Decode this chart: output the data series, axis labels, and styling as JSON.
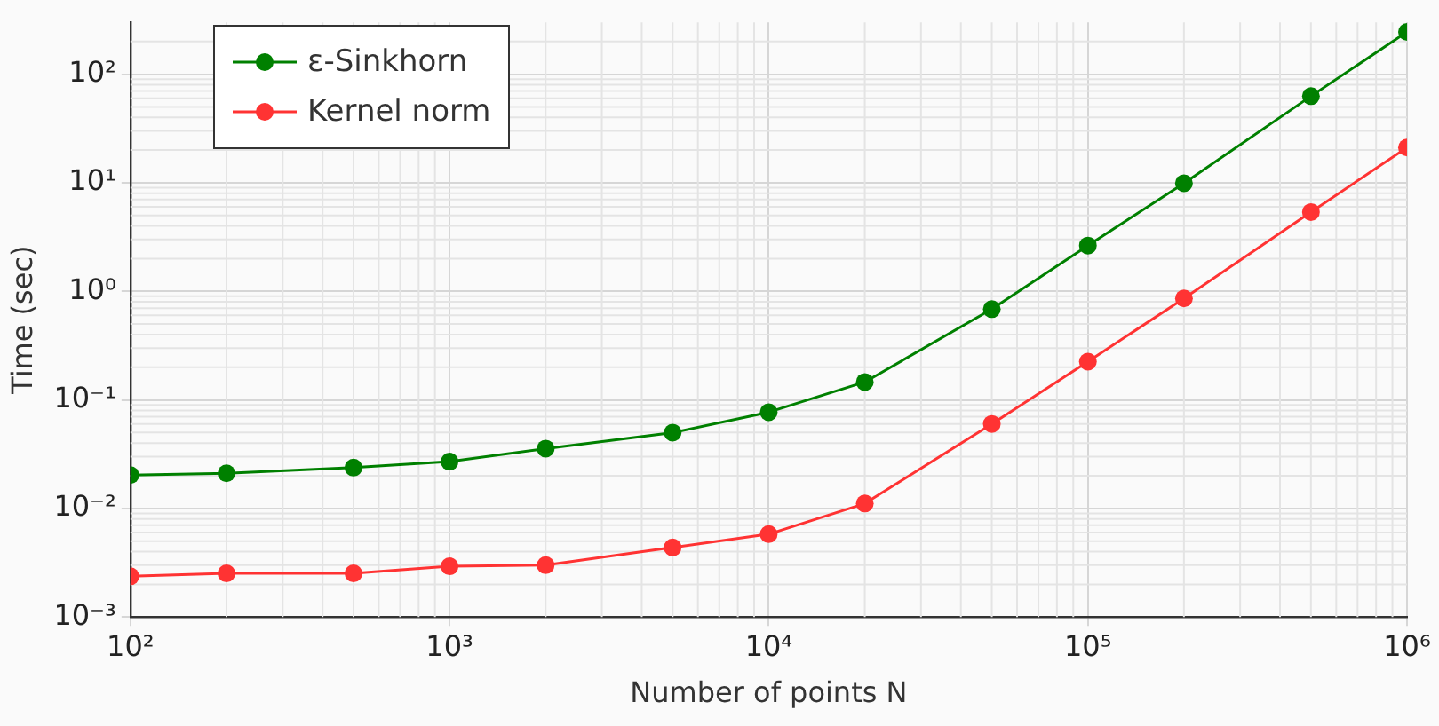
{
  "chart_data": {
    "type": "line",
    "xlabel": "Number of points N",
    "ylabel": "Time (sec)",
    "x": [
      100,
      200,
      500,
      1000,
      2000,
      5000,
      10000,
      20000,
      50000,
      100000,
      200000,
      500000,
      1000000
    ],
    "series": [
      {
        "name": "ε-Sinkhorn",
        "color": "#008000",
        "values": [
          0.0203,
          0.0211,
          0.0238,
          0.027,
          0.0356,
          0.0499,
          0.077,
          0.146,
          0.685,
          2.64,
          9.9,
          62.7,
          245
        ]
      },
      {
        "name": "Kernel norm",
        "color": "#ff3333",
        "values": [
          0.00237,
          0.00252,
          0.00252,
          0.00293,
          0.003,
          0.00437,
          0.0058,
          0.0111,
          0.06,
          0.225,
          0.86,
          5.37,
          21.1
        ]
      }
    ],
    "log": "xy",
    "xlim": [
      100,
      1000000
    ],
    "ylim": [
      0.001,
      300
    ],
    "xticks": [
      {
        "value": 100,
        "label": "10²"
      },
      {
        "value": 1000,
        "label": "10³"
      },
      {
        "value": 10000,
        "label": "10⁴"
      },
      {
        "value": 100000,
        "label": "10⁵"
      },
      {
        "value": 1000000,
        "label": "10⁶"
      }
    ],
    "yticks": [
      {
        "value": 0.001,
        "label": "10⁻³"
      },
      {
        "value": 0.01,
        "label": "10⁻²"
      },
      {
        "value": 0.1,
        "label": "10⁻¹"
      },
      {
        "value": 1,
        "label": "10⁰"
      },
      {
        "value": 10,
        "label": "10¹"
      },
      {
        "value": 100,
        "label": "10²"
      }
    ],
    "grid": true,
    "legend": "top left",
    "marker": "circle",
    "line_style": "solid"
  }
}
